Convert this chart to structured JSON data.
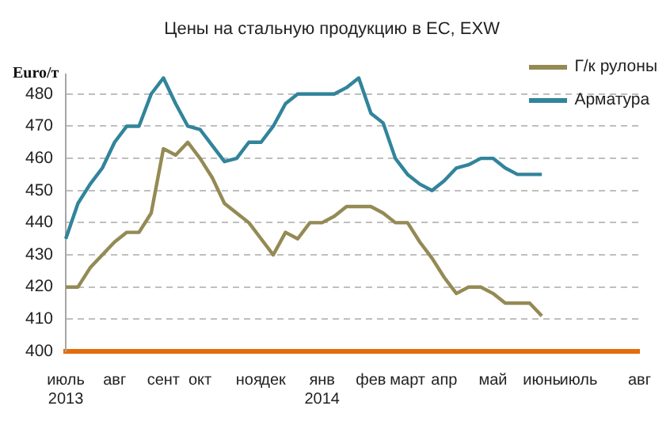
{
  "chart_data": {
    "type": "line",
    "title": "Цены на стальную продукцию в ЕС, EXW",
    "ylabel": "Euro/т",
    "categories": [
      [
        "июль",
        "2013"
      ],
      null,
      null,
      null,
      "авг",
      null,
      null,
      null,
      "сент",
      null,
      null,
      "окт",
      null,
      null,
      null,
      "ноя",
      null,
      "дек",
      null,
      null,
      null,
      [
        "янв",
        "2014"
      ],
      null,
      null,
      null,
      "фев",
      null,
      null,
      "март",
      null,
      null,
      "апр",
      null,
      null,
      null,
      "май",
      null,
      null,
      null,
      "июнь",
      null,
      null,
      "июль",
      null,
      null,
      null,
      null,
      "авг"
    ],
    "series": [
      {
        "name": "Г/к рулоны",
        "color": "#948a54",
        "values": [
          420,
          420,
          426,
          430,
          434,
          437,
          437,
          443,
          463,
          461,
          465,
          460,
          454,
          446,
          443,
          440,
          435,
          430,
          437,
          435,
          440,
          440,
          442,
          445,
          445,
          445,
          443,
          440,
          440,
          434,
          429,
          423,
          418,
          420,
          420,
          418,
          415,
          415,
          415,
          411,
          null,
          null,
          null,
          null,
          null,
          null,
          null,
          null
        ]
      },
      {
        "name": "Арматура",
        "color": "#31849b",
        "values": [
          435,
          446,
          452,
          457,
          465,
          470,
          470,
          480,
          485,
          477,
          470,
          469,
          464,
          459,
          460,
          465,
          465,
          470,
          477,
          480,
          480,
          480,
          480,
          482,
          485,
          474,
          471,
          460,
          455,
          452,
          450,
          453,
          457,
          458,
          460,
          460,
          457,
          455,
          455,
          455,
          null,
          null,
          null,
          null,
          null,
          null,
          null,
          null
        ]
      }
    ],
    "ylim": [
      400,
      486
    ],
    "yticks": [
      400,
      410,
      420,
      430,
      440,
      450,
      460,
      470,
      480
    ],
    "grid": "y",
    "legend": "top right",
    "marker": "none",
    "line_style": "solid"
  }
}
